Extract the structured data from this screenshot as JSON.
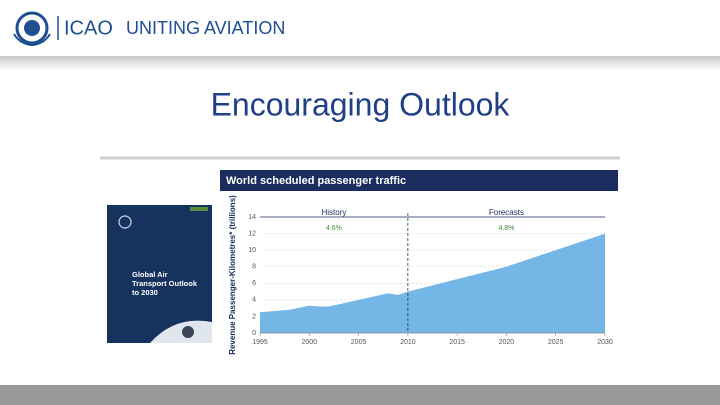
{
  "header": {
    "org": "ICAO",
    "tagline": "UNITING AVIATION"
  },
  "slide_title": "Encouraging Outlook",
  "book": {
    "title": "Global Air Transport Outlook to 2030"
  },
  "chart_data": {
    "type": "area",
    "title": "World scheduled passenger traffic",
    "y_label": "Revenue Passenger-Kilometres* (trillions)",
    "x": [
      1995,
      1998,
      2000,
      2001,
      2002,
      2005,
      2008,
      2009,
      2010,
      2015,
      2020,
      2025,
      2030
    ],
    "values": [
      2.5,
      2.8,
      3.3,
      3.2,
      3.2,
      4.0,
      4.8,
      4.6,
      5.0,
      6.5,
      8.0,
      10.0,
      12.0
    ],
    "color": "#74b6e6",
    "xlim": [
      1995,
      2030
    ],
    "xticks": [
      1995,
      2000,
      2005,
      2010,
      2015,
      2020,
      2025,
      2030
    ],
    "ylim": [
      0,
      14
    ],
    "yticks": [
      0,
      2,
      4,
      6,
      8,
      10,
      12,
      14
    ],
    "grid": true,
    "divider": 2010,
    "annotations": [
      "History",
      "Forecasts",
      "4.6%",
      "4.8%"
    ]
  }
}
